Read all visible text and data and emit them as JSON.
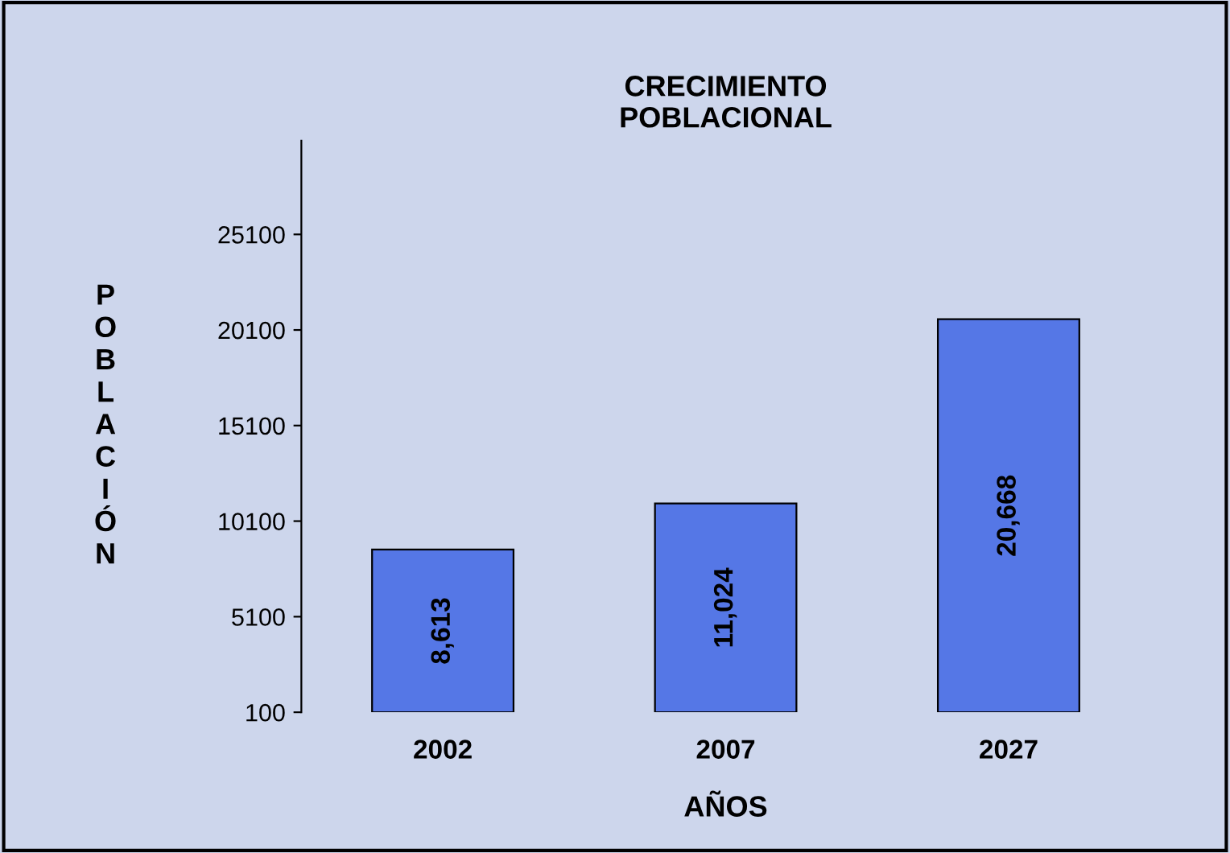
{
  "chart_data": {
    "type": "bar",
    "title": "CRECIMIENTO\nPOBLACIONAL",
    "xlabel": "AÑOS",
    "ylabel": "POBLACIÓN",
    "categories": [
      "2002",
      "2007",
      "2027"
    ],
    "values": [
      8613,
      11024,
      20668
    ],
    "value_labels": [
      "8,613",
      "11,024",
      "20,668"
    ],
    "color": "#5577e6",
    "ylim": [
      100,
      30000
    ],
    "yticks": [
      100,
      5100,
      10100,
      15100,
      20100,
      25100
    ],
    "grid": false
  }
}
